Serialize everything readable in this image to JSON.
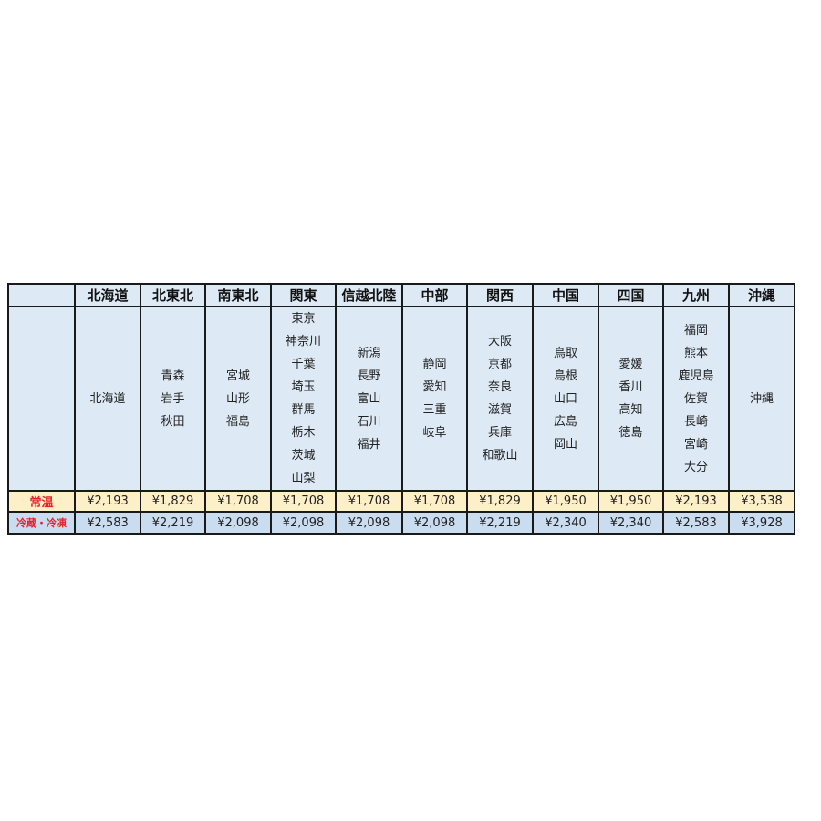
{
  "table": {
    "corner_label": "",
    "regions": [
      {
        "name": "北海道",
        "prefectures": [
          "北海道"
        ],
        "normal": "¥2,193",
        "cold": "¥2,583"
      },
      {
        "name": "北東北",
        "prefectures": [
          "青森",
          "岩手",
          "秋田"
        ],
        "normal": "¥1,829",
        "cold": "¥2,219"
      },
      {
        "name": "南東北",
        "prefectures": [
          "宮城",
          "山形",
          "福島"
        ],
        "normal": "¥1,708",
        "cold": "¥2,098"
      },
      {
        "name": "関東",
        "prefectures": [
          "東京",
          "神奈川",
          "千葉",
          "埼玉",
          "群馬",
          "栃木",
          "茨城",
          "山梨"
        ],
        "normal": "¥1,708",
        "cold": "¥2,098"
      },
      {
        "name": "信越北陸",
        "prefectures": [
          "新潟",
          "長野",
          "富山",
          "石川",
          "福井"
        ],
        "normal": "¥1,708",
        "cold": "¥2,098"
      },
      {
        "name": "中部",
        "prefectures": [
          "静岡",
          "愛知",
          "三重",
          "岐阜"
        ],
        "normal": "¥1,708",
        "cold": "¥2,098"
      },
      {
        "name": "関西",
        "prefectures": [
          "大阪",
          "京都",
          "奈良",
          "滋賀",
          "兵庫",
          "和歌山"
        ],
        "normal": "¥1,829",
        "cold": "¥2,219"
      },
      {
        "name": "中国",
        "prefectures": [
          "鳥取",
          "島根",
          "山口",
          "広島",
          "岡山"
        ],
        "normal": "¥1,950",
        "cold": "¥2,340"
      },
      {
        "name": "四国",
        "prefectures": [
          "愛媛",
          "香川",
          "高知",
          "徳島"
        ],
        "normal": "¥1,950",
        "cold": "¥2,340"
      },
      {
        "name": "九州",
        "prefectures": [
          "福岡",
          "熊本",
          "鹿児島",
          "佐賀",
          "長崎",
          "宮崎",
          "大分"
        ],
        "normal": "¥2,193",
        "cold": "¥2,583"
      },
      {
        "name": "沖縄",
        "prefectures": [
          "沖縄"
        ],
        "normal": "¥3,538",
        "cold": "¥3,928"
      }
    ],
    "rows": {
      "normal_label": "常温",
      "cold_label": "冷蔵・冷凍"
    },
    "colors": {
      "label_text": "#e8202a",
      "header_bg": "#dde9f5",
      "normal_bg": "#fdf0c8",
      "cold_bg": "#c9dcf0"
    }
  }
}
